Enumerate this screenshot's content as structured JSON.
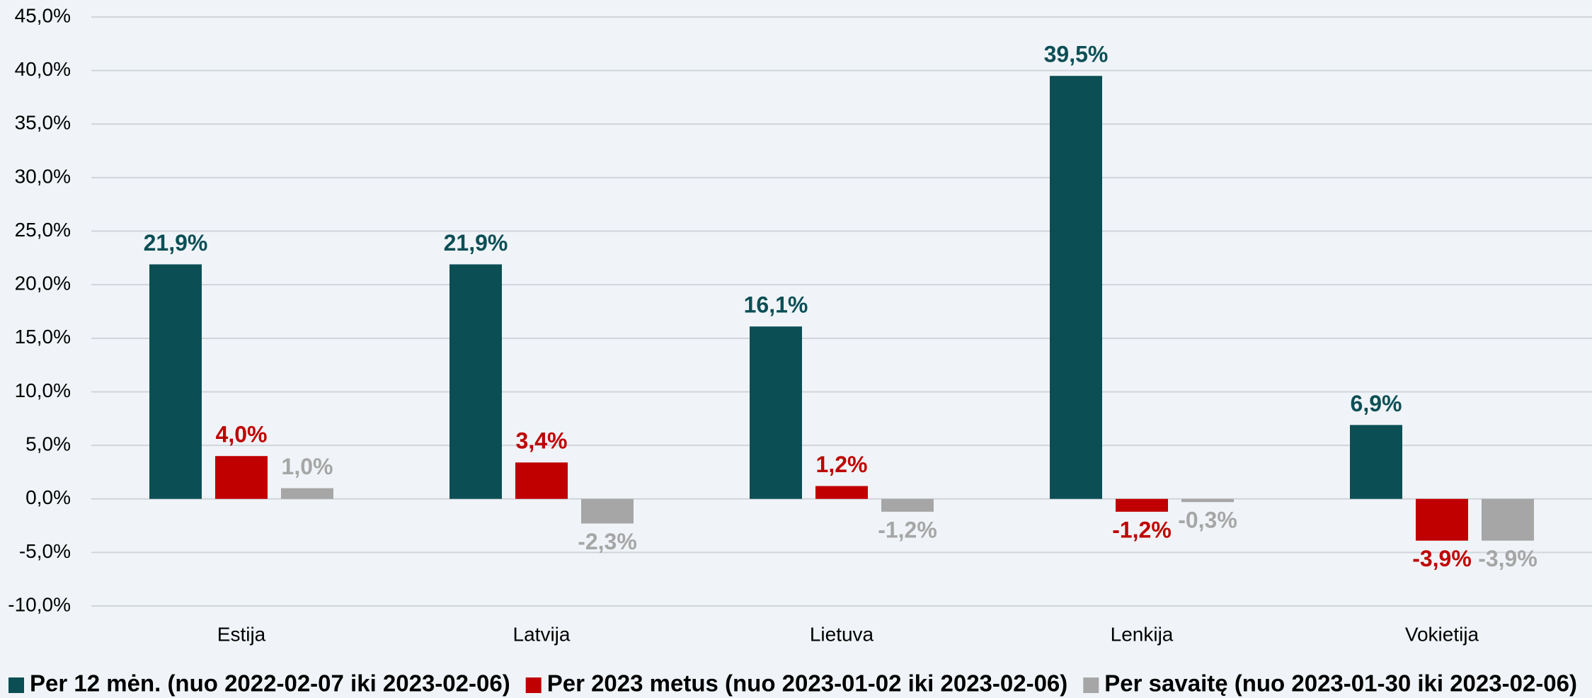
{
  "chart_data": {
    "type": "bar",
    "categories": [
      "Estija",
      "Latvija",
      "Lietuva",
      "Lenkija",
      "Vokietija"
    ],
    "series": [
      {
        "name": "Per 12 mėn. (nuo 2022-02-07 iki 2023-02-06)",
        "color": "#0b4f55",
        "values": [
          21.9,
          21.9,
          16.1,
          39.5,
          6.9
        ],
        "value_labels": [
          "21,9%",
          "21,9%",
          "16,1%",
          "39,5%",
          "6,9%"
        ]
      },
      {
        "name": "Per 2023 metus (nuo 2023-01-02 iki 2023-02-06)",
        "color": "#c00000",
        "values": [
          4.0,
          3.4,
          1.2,
          -1.2,
          -3.9
        ],
        "value_labels": [
          "4,0%",
          "3,4%",
          "1,2%",
          "-1,2%",
          "-3,9%"
        ]
      },
      {
        "name": "Per savaitę (nuo 2023-01-30 iki 2023-02-06)",
        "color": "#a6a6a6",
        "values": [
          1.0,
          -2.3,
          -1.2,
          -0.3,
          -3.9
        ],
        "value_labels": [
          "1,0%",
          "-2,3%",
          "-1,2%",
          "-0,3%",
          "-3,9%"
        ]
      }
    ],
    "ylim": [
      -10,
      45
    ],
    "yticks": [
      {
        "value": -10,
        "label": "-10,0%"
      },
      {
        "value": -5,
        "label": "-5,0%"
      },
      {
        "value": 0,
        "label": "0,0%"
      },
      {
        "value": 5,
        "label": "5,0%"
      },
      {
        "value": 10,
        "label": "10,0%"
      },
      {
        "value": 15,
        "label": "15,0%"
      },
      {
        "value": 20,
        "label": "20,0%"
      },
      {
        "value": 25,
        "label": "25,0%"
      },
      {
        "value": 30,
        "label": "30,0%"
      },
      {
        "value": 35,
        "label": "35,0%"
      },
      {
        "value": 40,
        "label": "40,0%"
      },
      {
        "value": 45,
        "label": "45,0%"
      }
    ],
    "grid": true,
    "legend": "bottom"
  }
}
